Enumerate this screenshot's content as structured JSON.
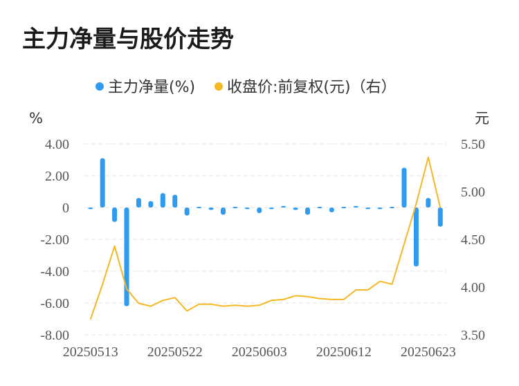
{
  "chart_data": {
    "type": "bar+line",
    "title": "主力净量与股价走势",
    "legend_position": "top-center",
    "legend": [
      {
        "label": "主力净量(%)",
        "color": "#2e9bf0",
        "marker": "circle"
      },
      {
        "label": "收盘价:前复权(元)（右）",
        "color": "#f5b722",
        "marker": "circle"
      }
    ],
    "left_axis": {
      "unit": "%",
      "range": [
        -8,
        4
      ],
      "ticks": [
        "4.00",
        "2.00",
        "0",
        "-2.00",
        "-4.00",
        "-6.00",
        "-8.00"
      ],
      "tick_values": [
        4,
        2,
        0,
        -2,
        -4,
        -6,
        -8
      ]
    },
    "right_axis": {
      "unit": "元",
      "range": [
        3.5,
        5.5
      ],
      "ticks": [
        "5.50",
        "5.00",
        "4.50",
        "4.00",
        "3.50"
      ],
      "tick_values": [
        5.5,
        5.0,
        4.5,
        4.0,
        3.5
      ]
    },
    "x_tick_labels": [
      {
        "index": 0,
        "label": "20250513"
      },
      {
        "index": 7,
        "label": "20250522"
      },
      {
        "index": 14,
        "label": "20250603"
      },
      {
        "index": 21,
        "label": "20250612"
      },
      {
        "index": 28,
        "label": "20250623"
      }
    ],
    "grid": "horizontal-dashed",
    "series": [
      {
        "name": "主力净量(%)",
        "type": "bar",
        "axis": "left",
        "color": "#2e9bf0",
        "values": [
          -0.1,
          3.1,
          -0.9,
          -6.2,
          0.6,
          0.4,
          0.9,
          0.8,
          -0.5,
          0.05,
          -0.15,
          -0.45,
          0.02,
          -0.1,
          -0.35,
          -0.1,
          0.1,
          -0.15,
          -0.45,
          0.05,
          -0.3,
          0.0,
          0.1,
          -0.1,
          -0.1,
          -0.05,
          2.5,
          -3.7,
          0.6,
          -1.2
        ]
      },
      {
        "name": "收盘价:前复权(元)（右）",
        "type": "line",
        "axis": "right",
        "color": "#f5b722",
        "values": [
          3.66,
          4.03,
          4.43,
          3.98,
          3.83,
          3.8,
          3.86,
          3.89,
          3.75,
          3.82,
          3.82,
          3.8,
          3.81,
          3.8,
          3.81,
          3.86,
          3.87,
          3.91,
          3.9,
          3.88,
          3.87,
          3.87,
          3.97,
          3.97,
          4.06,
          4.03,
          4.45,
          4.87,
          5.36,
          4.83
        ]
      }
    ]
  }
}
